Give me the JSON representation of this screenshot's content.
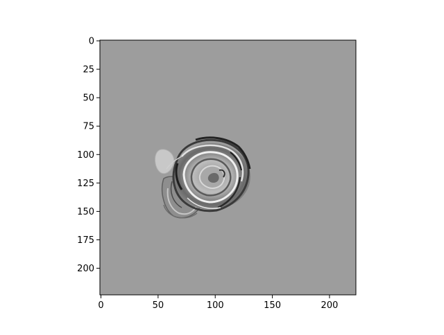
{
  "figure": {
    "background_color": "#ffffff",
    "image_fill_color": "#9d9d9d",
    "subject": "grayscale swirl / rose-like shape in the left-center of the image"
  },
  "chart_data": {
    "type": "heatmap",
    "title": "",
    "xlabel": "",
    "ylabel": "",
    "colormap": "gray",
    "xlim": [
      0,
      224
    ],
    "ylim": [
      224,
      0
    ],
    "x_ticks": [
      "0",
      "50",
      "100",
      "150",
      "200"
    ],
    "y_ticks": [
      "0",
      "25",
      "50",
      "75",
      "100",
      "125",
      "150",
      "175",
      "200"
    ],
    "x_tick_values": [
      0,
      50,
      100,
      150,
      200
    ],
    "y_tick_values": [
      0,
      25,
      50,
      75,
      100,
      125,
      150,
      175,
      200
    ],
    "grid": false,
    "legend": "none"
  }
}
